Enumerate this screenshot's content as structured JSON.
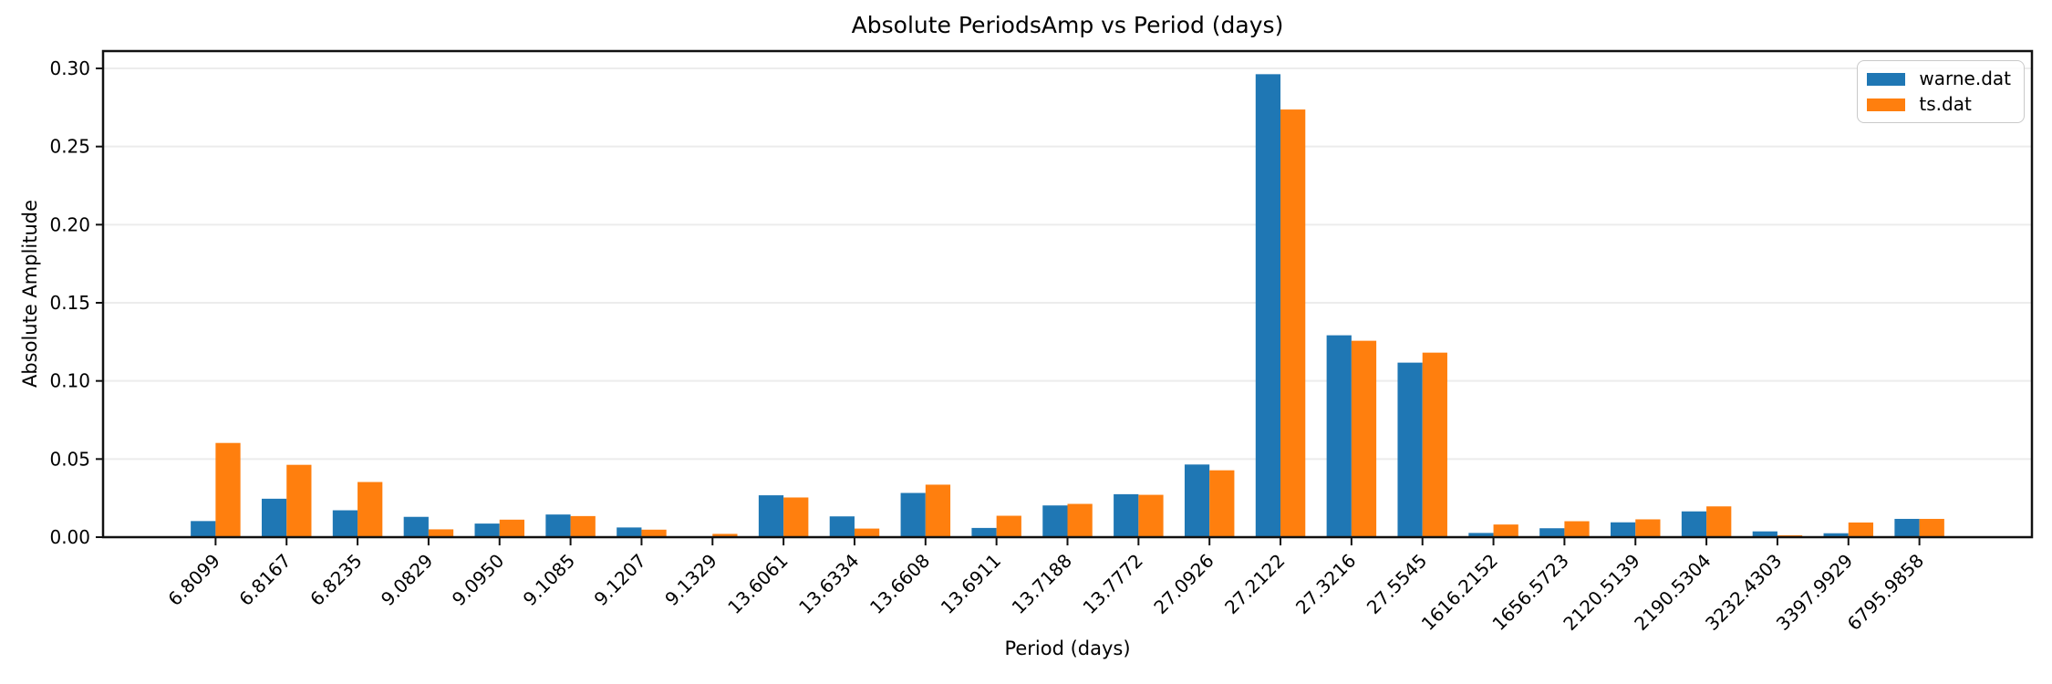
{
  "chart_data": {
    "type": "bar",
    "title": "Absolute PeriodsAmp vs Period (days)",
    "xlabel": "Period (days)",
    "ylabel": "Absolute Amplitude",
    "categories": [
      "6.8099",
      "6.8167",
      "6.8235",
      "9.0829",
      "9.0950",
      "9.1085",
      "9.1207",
      "9.1329",
      "13.6061",
      "13.6334",
      "13.6608",
      "13.6911",
      "13.7188",
      "13.7772",
      "27.0926",
      "27.2122",
      "27.3216",
      "27.5545",
      "1616.2152",
      "1656.5723",
      "2120.5139",
      "2190.5304",
      "3232.4303",
      "3397.9929",
      "6795.9858"
    ],
    "series": [
      {
        "name": "warne.dat",
        "color": "#1f77b4",
        "values": [
          0.0103,
          0.0246,
          0.0172,
          0.013,
          0.0087,
          0.0145,
          0.0062,
          0.0003,
          0.0268,
          0.0133,
          0.0283,
          0.0059,
          0.0203,
          0.0275,
          0.0465,
          0.2963,
          0.1292,
          0.1117,
          0.0027,
          0.0057,
          0.0095,
          0.0165,
          0.0037,
          0.0025,
          0.0117
        ]
      },
      {
        "name": "ts.dat",
        "color": "#ff7f0e",
        "values": [
          0.0603,
          0.0463,
          0.0353,
          0.005,
          0.0112,
          0.0135,
          0.0048,
          0.0021,
          0.0254,
          0.0055,
          0.0336,
          0.0137,
          0.0213,
          0.0271,
          0.0428,
          0.2737,
          0.1257,
          0.1181,
          0.0081,
          0.0102,
          0.0114,
          0.0197,
          0.0012,
          0.0094,
          0.0117
        ]
      }
    ],
    "ylim": [
      0,
      0.3111
    ],
    "yticks": [
      "0.00",
      "0.05",
      "0.10",
      "0.15",
      "0.20",
      "0.25",
      "0.30"
    ],
    "grid": "horizontal",
    "legend_position": "upper right",
    "bar_width_fraction": 0.35,
    "x_tick_rotation_deg": 45
  },
  "style": {
    "grid_color": "#ececec",
    "spine_color": "#111111",
    "tick_color": "#111111",
    "text_color": "#000000"
  }
}
